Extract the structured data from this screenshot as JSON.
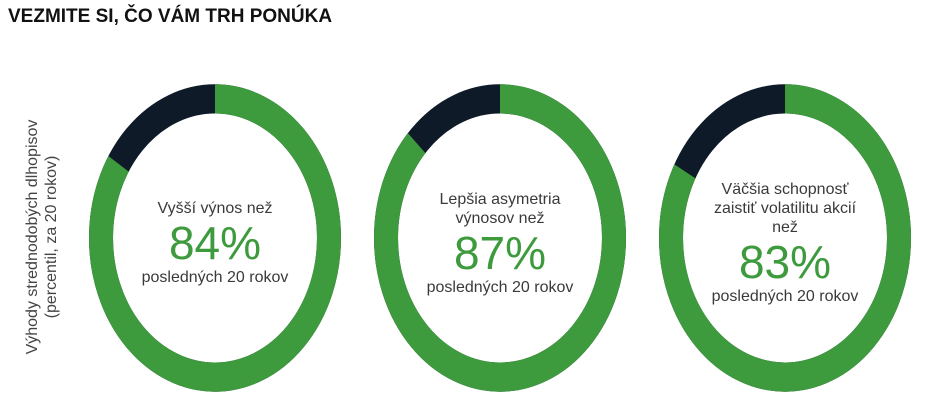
{
  "title": "VEZMITE SI, ČO VÁM TRH PONÚKA",
  "side_label": "Výhody strednodobých dlhopisov (percentil, za 20 rokov)",
  "chart_data": [
    {
      "type": "donut",
      "label": "Vyšší výnos než",
      "value": 84,
      "value_label": "84%",
      "note": "posledných 20 rokov",
      "range": [
        0,
        100
      ],
      "color": "#3d9a3d",
      "track_color": "#0e1a28"
    },
    {
      "type": "donut",
      "label": "Lepšia asymetria výnosov než",
      "value": 87,
      "value_label": "87%",
      "note": "posledných 20 rokov",
      "range": [
        0,
        100
      ],
      "color": "#3d9a3d",
      "track_color": "#0e1a28"
    },
    {
      "type": "donut",
      "label": "Väčšia schopnosť zaistiť volatilitu akcií než",
      "value": 83,
      "value_label": "83%",
      "note": "posledných 20 rokov",
      "range": [
        0,
        100
      ],
      "color": "#3d9a3d",
      "track_color": "#0e1a28"
    }
  ]
}
